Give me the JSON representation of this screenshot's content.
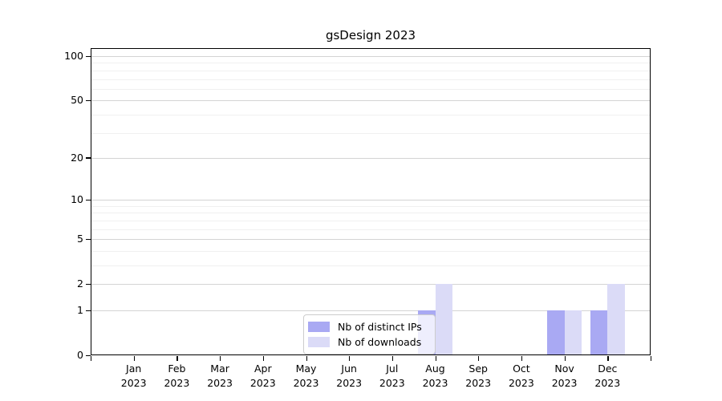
{
  "chart_data": {
    "type": "bar",
    "title": "gsDesign 2023",
    "x_categories": [
      "Jan",
      "Feb",
      "Mar",
      "Apr",
      "May",
      "Jun",
      "Jul",
      "Aug",
      "Sep",
      "Oct",
      "Nov",
      "Dec"
    ],
    "x_year": "2023",
    "series": [
      {
        "name": "Nb of distinct IPs",
        "color": "#a9a9f3",
        "values": [
          0,
          0,
          0,
          0,
          0,
          0,
          0,
          1,
          0,
          0,
          1,
          1
        ]
      },
      {
        "name": "Nb of downloads",
        "color": "#dbdbf7",
        "values": [
          0,
          0,
          0,
          0,
          0,
          0,
          0,
          2,
          0,
          0,
          1,
          2
        ]
      }
    ],
    "y_axis": {
      "scale": "log1p",
      "ticks": [
        0,
        1,
        2,
        5,
        10,
        20,
        50,
        100
      ],
      "minor_gridlines": [
        3,
        4,
        6,
        7,
        8,
        9,
        30,
        40,
        60,
        70,
        80,
        90
      ],
      "range_top": 114
    },
    "legend": {
      "position": "inside-bottom-center",
      "entries": [
        "Nb of distinct IPs",
        "Nb of downloads"
      ]
    },
    "grid": {
      "on": true,
      "major_color": "#d4d4d4",
      "minor_color": "#f0f0f0"
    }
  }
}
